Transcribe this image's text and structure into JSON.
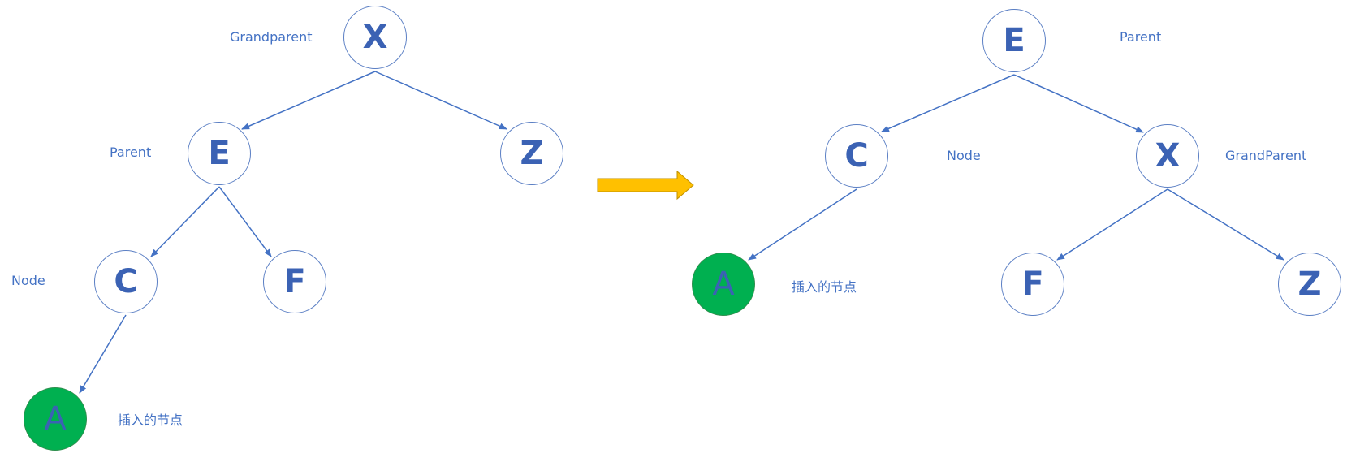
{
  "colors": {
    "node_border": "#5b7fc4",
    "node_text": "#3b62b4",
    "label_text": "#4472c4",
    "edge": "#4472c4",
    "inserted_fill": "#00b050",
    "arrow_fill": "#ffc000",
    "arrow_stroke": "#bf9000"
  },
  "before": {
    "nodes": {
      "X": "X",
      "E": "E",
      "Z": "Z",
      "C": "C",
      "F": "F",
      "A": "A"
    },
    "labels": {
      "grandparent": "Grandparent",
      "parent": "Parent",
      "node": "Node",
      "inserted": "插入的节点"
    }
  },
  "after": {
    "nodes": {
      "E": "E",
      "C": "C",
      "X": "X",
      "A": "A",
      "F": "F",
      "Z": "Z"
    },
    "labels": {
      "parent": "Parent",
      "node": "Node",
      "grandparent": "GrandParent",
      "inserted": "插入的节点"
    }
  },
  "transform_arrow_icon": "right-arrow-icon"
}
